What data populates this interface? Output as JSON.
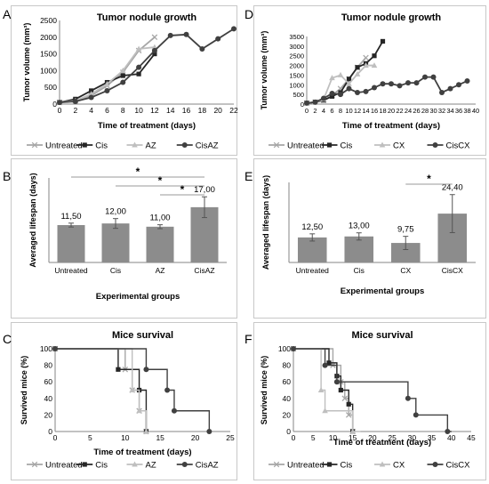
{
  "panels": {
    "A": "A",
    "B": "B",
    "C": "C",
    "D": "D",
    "E": "E",
    "F": "F"
  },
  "chart_data": [
    {
      "id": "A",
      "type": "line",
      "title": "Tumor nodule growth",
      "xlabel": "Time of treatment (days)",
      "ylabel": "Tumor volume (mm³)",
      "xlim": [
        0,
        22
      ],
      "ylim": [
        0,
        2500
      ],
      "xticks": [
        "0",
        "2",
        "4",
        "6",
        "8",
        "10",
        "12",
        "14",
        "16",
        "18",
        "20",
        "22"
      ],
      "yticks": [
        "0",
        "500",
        "1000",
        "1500",
        "2000",
        "2500"
      ],
      "series": [
        {
          "name": "Untreated",
          "marker": "x",
          "color": "#a6a6a6",
          "x": [
            0,
            2,
            4,
            6,
            8,
            10,
            12
          ],
          "y": [
            50,
            100,
            250,
            550,
            950,
            1600,
            2000
          ]
        },
        {
          "name": "Cis",
          "marker": "square",
          "color": "#262626",
          "x": [
            0,
            2,
            4,
            6,
            8,
            10,
            12
          ],
          "y": [
            50,
            150,
            400,
            650,
            850,
            900,
            1500
          ]
        },
        {
          "name": "AZ",
          "marker": "triangle",
          "color": "#bfbfbf",
          "x": [
            0,
            2,
            4,
            6,
            8,
            10,
            12
          ],
          "y": [
            50,
            100,
            300,
            600,
            1000,
            1650,
            1700
          ]
        },
        {
          "name": "CisAZ",
          "marker": "circle",
          "color": "#404040",
          "x": [
            0,
            2,
            4,
            6,
            8,
            10,
            12,
            14,
            16,
            18,
            20,
            22
          ],
          "y": [
            50,
            80,
            200,
            400,
            650,
            1100,
            1600,
            2050,
            2080,
            1650,
            1950,
            2250
          ]
        }
      ]
    },
    {
      "id": "B",
      "type": "bar",
      "xlabel": "Experimental groups",
      "ylabel": "Averaged lifespan (days)",
      "categories": [
        "Untreated",
        "Cis",
        "AZ",
        "CisAZ"
      ],
      "values": [
        11.5,
        12.0,
        11.0,
        17.0
      ],
      "errors": [
        0.6,
        1.5,
        0.6,
        3.2
      ],
      "value_labels": [
        "11,50",
        "12,00",
        "11,00",
        "17,00"
      ],
      "significance": [
        "*",
        "*",
        "*"
      ],
      "ylim": [
        0,
        26
      ]
    },
    {
      "id": "C",
      "type": "line",
      "title": "Mice survival",
      "xlabel": "Time of treatment (days)",
      "ylabel": "Survived mice (%)",
      "xlim": [
        0,
        25
      ],
      "ylim": [
        0,
        100
      ],
      "xticks": [
        "0",
        "5",
        "10",
        "15",
        "20",
        "25"
      ],
      "yticks": [
        "0",
        "20",
        "40",
        "60",
        "80",
        "100"
      ],
      "series": [
        {
          "name": "Untreated",
          "marker": "x",
          "color": "#a6a6a6",
          "steps": [
            [
              0,
              100
            ],
            [
              10,
              100
            ],
            [
              10,
              75
            ],
            [
              11,
              75
            ],
            [
              11,
              50
            ],
            [
              12,
              50
            ],
            [
              12,
              25
            ],
            [
              13,
              25
            ],
            [
              13,
              0
            ]
          ]
        },
        {
          "name": "Cis",
          "marker": "square",
          "color": "#262626",
          "steps": [
            [
              0,
              100
            ],
            [
              9,
              100
            ],
            [
              9,
              75
            ],
            [
              12,
              75
            ],
            [
              12,
              50
            ],
            [
              13,
              50
            ],
            [
              13,
              0
            ]
          ]
        },
        {
          "name": "AZ",
          "marker": "triangle",
          "color": "#bfbfbf",
          "steps": [
            [
              0,
              100
            ],
            [
              11,
              100
            ],
            [
              11,
              50
            ],
            [
              12,
              50
            ],
            [
              12,
              25
            ],
            [
              13,
              25
            ],
            [
              13,
              0
            ]
          ]
        },
        {
          "name": "CisAZ",
          "marker": "circle",
          "color": "#404040",
          "steps": [
            [
              0,
              100
            ],
            [
              13,
              100
            ],
            [
              13,
              75
            ],
            [
              16,
              75
            ],
            [
              16,
              50
            ],
            [
              17,
              50
            ],
            [
              17,
              25
            ],
            [
              22,
              25
            ],
            [
              22,
              0
            ]
          ]
        }
      ]
    },
    {
      "id": "D",
      "type": "line",
      "title": "Tumor nodule growth",
      "xlabel": "Time of treatment (days)",
      "ylabel": "Tumor volume (mm³)",
      "xlim": [
        0,
        40
      ],
      "ylim": [
        0,
        3500
      ],
      "xticks": [
        "0",
        "2",
        "4",
        "6",
        "8",
        "10",
        "12",
        "14",
        "16",
        "18",
        "20",
        "22",
        "24",
        "26",
        "28",
        "30",
        "32",
        "34",
        "36",
        "38",
        "40"
      ],
      "yticks": [
        "0",
        "500",
        "1000",
        "1500",
        "2000",
        "2500",
        "3000",
        "3500"
      ],
      "series": [
        {
          "name": "Untreated",
          "marker": "x",
          "color": "#a6a6a6",
          "x": [
            0,
            2,
            4,
            6,
            8,
            10,
            12,
            14
          ],
          "y": [
            50,
            100,
            200,
            450,
            800,
            1300,
            1900,
            2400
          ]
        },
        {
          "name": "Cis",
          "marker": "square",
          "color": "#262626",
          "x": [
            0,
            2,
            4,
            6,
            8,
            10,
            12,
            14,
            16,
            18
          ],
          "y": [
            50,
            100,
            200,
            400,
            600,
            1300,
            1900,
            2100,
            2500,
            3250
          ]
        },
        {
          "name": "CX",
          "marker": "triangle",
          "color": "#bfbfbf",
          "x": [
            0,
            2,
            4,
            6,
            8,
            10,
            12,
            14,
            16
          ],
          "y": [
            50,
            100,
            250,
            1350,
            1500,
            1050,
            1550,
            2000,
            2000
          ]
        },
        {
          "name": "CisCX",
          "marker": "circle",
          "color": "#404040",
          "x": [
            0,
            2,
            4,
            6,
            8,
            10,
            12,
            14,
            16,
            18,
            20,
            22,
            24,
            26,
            28,
            30,
            32,
            34,
            36,
            38
          ],
          "y": [
            50,
            100,
            300,
            550,
            500,
            800,
            600,
            650,
            850,
            1050,
            1050,
            950,
            1100,
            1100,
            1400,
            1400,
            600,
            800,
            1000,
            1200
          ]
        }
      ]
    },
    {
      "id": "E",
      "type": "bar",
      "xlabel": "Experimental groups",
      "ylabel": "Averaged lifespan (days)",
      "categories": [
        "Untreated",
        "Cis",
        "CX",
        "CisCX"
      ],
      "values": [
        12.5,
        13.0,
        9.75,
        24.4
      ],
      "errors": [
        1.8,
        1.8,
        3.3,
        9.5
      ],
      "value_labels": [
        "12,50",
        "13,00",
        "9,75",
        "24,40"
      ],
      "significance": [
        "*"
      ],
      "ylim": [
        0,
        40
      ]
    },
    {
      "id": "F",
      "type": "line",
      "title": "Mice survival",
      "xlabel": "Time of treatment (days)",
      "ylabel": "Survived mice (%)",
      "xlim": [
        0,
        45
      ],
      "ylim": [
        0,
        100
      ],
      "xticks": [
        "0",
        "5",
        "10",
        "15",
        "20",
        "25",
        "30",
        "35",
        "40",
        "45"
      ],
      "yticks": [
        "0",
        "20",
        "40",
        "60",
        "80",
        "100"
      ],
      "series": [
        {
          "name": "Untreated",
          "marker": "x",
          "color": "#a6a6a6",
          "steps": [
            [
              0,
              100
            ],
            [
              10,
              100
            ],
            [
              10,
              80
            ],
            [
              12,
              80
            ],
            [
              12,
              60
            ],
            [
              13,
              60
            ],
            [
              13,
              40
            ],
            [
              14,
              40
            ],
            [
              14,
              20
            ],
            [
              15,
              20
            ],
            [
              15,
              0
            ]
          ]
        },
        {
          "name": "Cis",
          "marker": "square",
          "color": "#262626",
          "steps": [
            [
              0,
              100
            ],
            [
              9,
              100
            ],
            [
              9,
              83
            ],
            [
              11,
              83
            ],
            [
              11,
              67
            ],
            [
              12,
              67
            ],
            [
              12,
              50
            ],
            [
              14,
              50
            ],
            [
              14,
              33
            ],
            [
              15,
              33
            ],
            [
              15,
              0
            ]
          ]
        },
        {
          "name": "CX",
          "marker": "triangle",
          "color": "#bfbfbf",
          "steps": [
            [
              0,
              100
            ],
            [
              7,
              100
            ],
            [
              7,
              50
            ],
            [
              8,
              50
            ],
            [
              8,
              25
            ],
            [
              15,
              25
            ],
            [
              15,
              0
            ],
            [
              17,
              0
            ]
          ]
        },
        {
          "name": "CisCX",
          "marker": "circle",
          "color": "#404040",
          "steps": [
            [
              0,
              100
            ],
            [
              8,
              100
            ],
            [
              8,
              80
            ],
            [
              11,
              80
            ],
            [
              11,
              60
            ],
            [
              29,
              60
            ],
            [
              29,
              40
            ],
            [
              31,
              40
            ],
            [
              31,
              20
            ],
            [
              39,
              20
            ],
            [
              39,
              0
            ],
            [
              40,
              0
            ]
          ]
        }
      ]
    }
  ]
}
